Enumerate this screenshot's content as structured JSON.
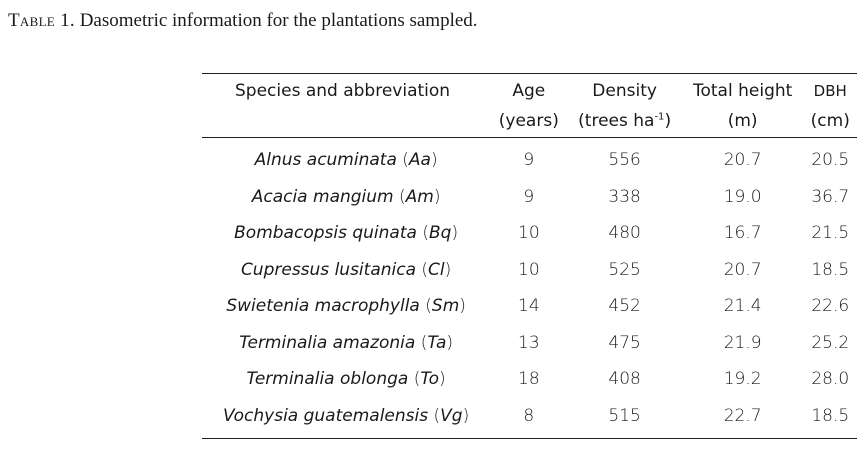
{
  "caption": {
    "label": "Table 1.",
    "text": "Dasometric information for the plantations sampled."
  },
  "headers": {
    "species": "Species and abbreviation",
    "age": "Age",
    "age_unit": "(years)",
    "density": "Density",
    "density_unit_prefix": "(trees ha",
    "density_unit_sup": "-1",
    "density_unit_suffix": ")",
    "height": "Total height",
    "height_unit": "(m)",
    "dbh": "DBH",
    "dbh_unit": "(cm)"
  },
  "rows": [
    {
      "species": "Alnus acuminata",
      "abbr": "Aa",
      "age": "9",
      "density": "556",
      "height": "20.7",
      "dbh": "20.5"
    },
    {
      "species": "Acacia mangium",
      "abbr": "Am",
      "age": "9",
      "density": "338",
      "height": "19.0",
      "dbh": "36.7"
    },
    {
      "species": "Bombacopsis quinata",
      "abbr": "Bq",
      "age": "10",
      "density": "480",
      "height": "16.7",
      "dbh": "21.5"
    },
    {
      "species": "Cupressus lusitanica",
      "abbr": "Cl",
      "age": "10",
      "density": "525",
      "height": "20.7",
      "dbh": "18.5"
    },
    {
      "species": "Swietenia macrophylla",
      "abbr": "Sm",
      "age": "14",
      "density": "452",
      "height": "21.4",
      "dbh": "22.6"
    },
    {
      "species": "Terminalia amazonia",
      "abbr": "Ta",
      "age": "13",
      "density": "475",
      "height": "21.9",
      "dbh": "25.2"
    },
    {
      "species": "Terminalia oblonga",
      "abbr": "To",
      "age": "18",
      "density": "408",
      "height": "19.2",
      "dbh": "28.0"
    },
    {
      "species": "Vochysia guatemalensis",
      "abbr": "Vg",
      "age": "8",
      "density": "515",
      "height": "22.7",
      "dbh": "18.5"
    }
  ]
}
